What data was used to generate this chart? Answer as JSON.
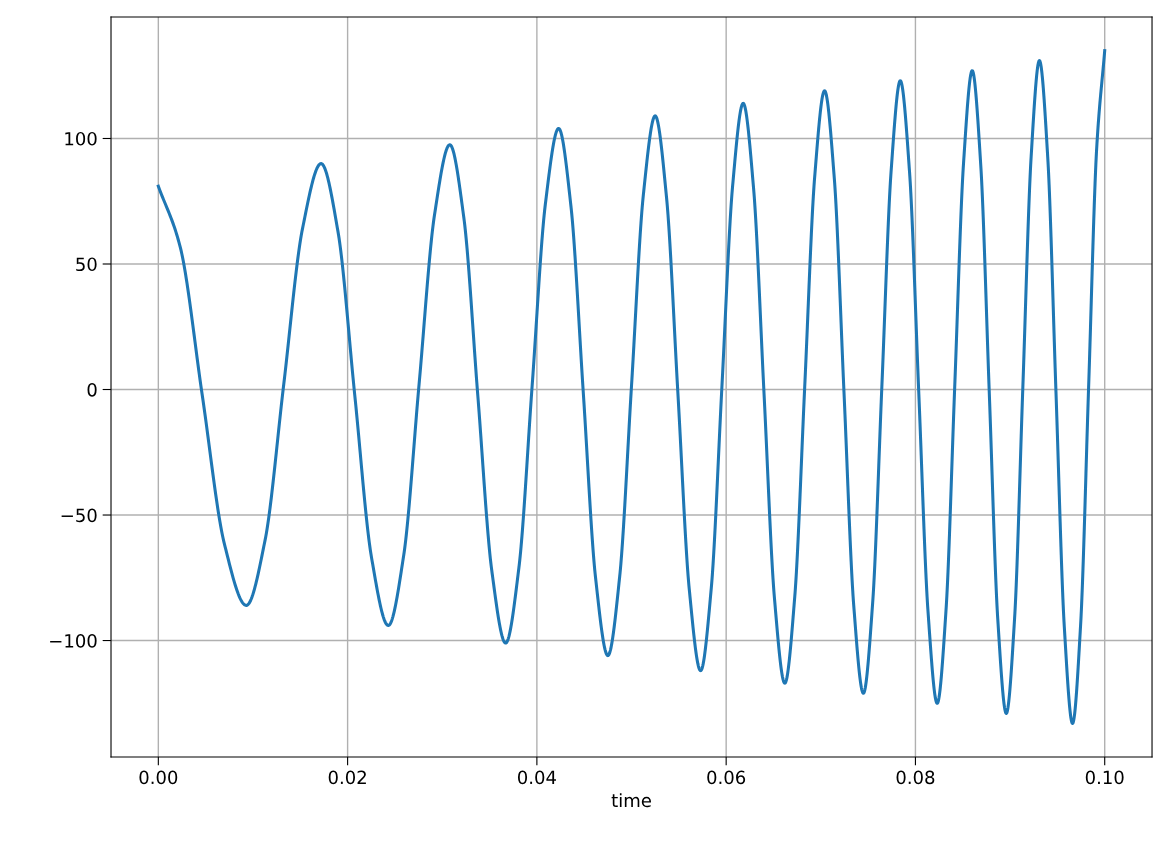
{
  "chart_data": {
    "type": "line",
    "xlabel": "time",
    "x": [
      0,
      0.00233,
      0.00465,
      0.00698,
      0.0093,
      0.01128,
      0.01325,
      0.01523,
      0.0172,
      0.01898,
      0.02075,
      0.02253,
      0.0243,
      0.02593,
      0.02755,
      0.02918,
      0.0308,
      0.03228,
      0.03375,
      0.03523,
      0.0367,
      0.0381,
      0.0395,
      0.0409,
      0.0423,
      0.0436,
      0.0449,
      0.0462,
      0.0475,
      0.04875,
      0.05,
      0.05125,
      0.0525,
      0.0537,
      0.0549,
      0.0561,
      0.0573,
      0.05843,
      0.05955,
      0.06068,
      0.0618,
      0.0629,
      0.064,
      0.0651,
      0.0662,
      0.06725,
      0.0683,
      0.06935,
      0.0704,
      0.07143,
      0.07245,
      0.07348,
      0.0745,
      0.07548,
      0.07645,
      0.07743,
      0.0784,
      0.07938,
      0.08035,
      0.08133,
      0.0823,
      0.08323,
      0.08415,
      0.08508,
      0.086,
      0.0869,
      0.0878,
      0.0887,
      0.0896,
      0.09048,
      0.09135,
      0.09223,
      0.0931,
      0.09398,
      0.09485,
      0.09573,
      0.0966,
      0.09745,
      0.0983,
      0.09915,
      0.1
    ],
    "series": [
      {
        "color": "#1f77b4",
        "values": [
          81,
          56.5,
          -2.5,
          -61.5,
          -86,
          -60,
          2,
          64,
          90,
          63,
          -2,
          -67,
          -94,
          -66,
          2,
          69.5,
          97.5,
          68.5,
          -2,
          -72,
          -101,
          -71,
          1.5,
          74,
          104,
          73,
          -1,
          -75,
          -106,
          -74.5,
          1.5,
          77.5,
          109,
          76.5,
          -1.5,
          -79.5,
          -112,
          -79,
          1,
          81,
          114,
          80,
          -1.5,
          -83,
          -117,
          -82.5,
          1,
          84.5,
          119,
          84,
          -1,
          -86,
          -121,
          -85,
          1,
          87,
          123,
          86.5,
          -1,
          -88.5,
          -125,
          -88,
          1,
          90,
          127,
          89.5,
          -1,
          -91.5,
          -129,
          -91,
          1,
          93,
          131,
          92.5,
          -1,
          -94.5,
          -133,
          -94,
          1,
          96,
          135
        ]
      }
    ],
    "xlim": [
      -0.005,
      0.105
    ],
    "xticks": [
      {
        "value": 0,
        "label": "0.00"
      },
      {
        "value": 0.02,
        "label": "0.02"
      },
      {
        "value": 0.04,
        "label": "0.04"
      },
      {
        "value": 0.06,
        "label": "0.06"
      },
      {
        "value": 0.08,
        "label": "0.08"
      },
      {
        "value": 0.1,
        "label": "0.10"
      }
    ],
    "ylim": [
      -146.4,
      148.4
    ],
    "yticks": [
      {
        "value": -100,
        "label": "−100"
      },
      {
        "value": -50,
        "label": "−50"
      },
      0,
      50,
      100
    ],
    "grid": true,
    "legend": false
  }
}
